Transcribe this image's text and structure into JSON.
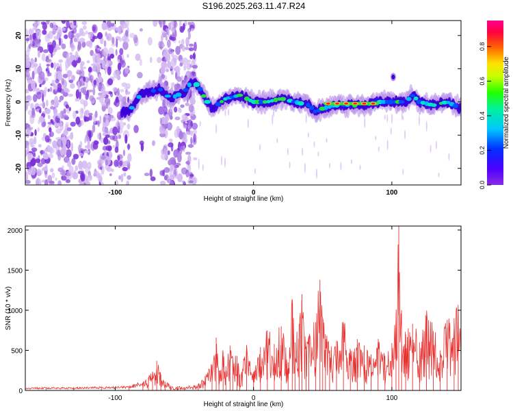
{
  "title": "S196.2025.263.11.47.R24",
  "colors": {
    "snr_line": "#e8312f",
    "wave_core": "#3a00d8",
    "wave_halo": "#b68ce8",
    "noise_light": "#d3b8f2",
    "noise_mid": "#a87ae0",
    "noise_dark": "#7a2fd8"
  },
  "chart_data": [
    {
      "id": "spectrogram",
      "type": "heatmap",
      "xlabel": "Height of straight line (km)",
      "ylabel": "Frequency (Hz)",
      "xlim": [
        -165,
        150
      ],
      "ylim": [
        -25,
        24.5
      ],
      "xticks": [
        -100,
        0,
        100
      ],
      "xtick_labels": [
        "-100",
        "0",
        "100"
      ],
      "yticks": [
        -20,
        -10,
        0,
        10,
        20
      ],
      "ytick_labels": [
        "-20",
        "-10",
        "0",
        "10",
        "20"
      ],
      "colorbar": {
        "label": "Normalized spectral amplitude",
        "range": [
          0,
          0.95
        ],
        "ticks": [
          0,
          0.2,
          0.4,
          0.6,
          0.8
        ],
        "tick_labels": [
          "0.0",
          "0.2",
          "0.4",
          "0.6",
          "0.8"
        ],
        "colormap": "rainbow (violet → blue → cyan → green → yellow → orange → red → magenta)"
      },
      "ridge": {
        "x": [
          -90,
          -82,
          -75,
          -68,
          -60,
          -50,
          -45,
          -40,
          -35,
          -30,
          -20,
          -10,
          0,
          10,
          20,
          30,
          40,
          45,
          50,
          60,
          70,
          80,
          90,
          100,
          110,
          115,
          120,
          130,
          140,
          150
        ],
        "y": [
          -3,
          2,
          3,
          4,
          1,
          3,
          6,
          5,
          1,
          -2,
          1,
          2,
          0,
          0,
          1,
          0,
          -1,
          -3,
          -2,
          -1,
          -1,
          -1,
          0,
          0,
          0,
          2,
          0,
          -1,
          0,
          -2
        ],
        "peak": {
          "x_range": [
            52,
            90
          ],
          "frequency": -0.5,
          "amplitude": 0.9
        }
      }
    },
    {
      "id": "snr",
      "type": "line",
      "xlabel": "Height of straight line (km)",
      "ylabel": "SNR (10 * v/v)",
      "xlim": [
        -165,
        150
      ],
      "ylim": [
        0,
        2050
      ],
      "xticks": [
        -100,
        0,
        100
      ],
      "xtick_labels": [
        "-100",
        "0",
        "100"
      ],
      "yticks": [
        0,
        500,
        1000,
        1500,
        2000
      ],
      "ytick_labels": [
        "0",
        "500",
        "1000",
        "1500",
        "2000"
      ],
      "series": [
        {
          "x": [
            -165,
            -150,
            -130,
            -110,
            -90,
            -80,
            -76,
            -73,
            -70,
            -67,
            -64,
            -60,
            -55,
            -50,
            -40,
            -35,
            -30,
            -27,
            -25,
            -22,
            -20,
            -17,
            -15,
            -12,
            -10,
            -5,
            0,
            5,
            10,
            15,
            20,
            25,
            28,
            30,
            33,
            35,
            38,
            40,
            45,
            48,
            50,
            52,
            55,
            60,
            65,
            70,
            75,
            80,
            85,
            90,
            95,
            100,
            103,
            105,
            107,
            110,
            115,
            120,
            125,
            130,
            135,
            140,
            145,
            148,
            150
          ],
          "values": [
            25,
            30,
            28,
            35,
            40,
            90,
            160,
            230,
            370,
            200,
            110,
            60,
            50,
            40,
            80,
            180,
            320,
            660,
            250,
            480,
            300,
            560,
            380,
            430,
            200,
            520,
            230,
            540,
            750,
            580,
            800,
            350,
            1090,
            600,
            830,
            1200,
            500,
            680,
            850,
            1380,
            900,
            700,
            500,
            620,
            850,
            500,
            640,
            560,
            450,
            600,
            430,
            590,
            880,
            2070,
            1000,
            700,
            830,
            600,
            920,
            740,
            500,
            880,
            900,
            1000,
            560
          ]
        }
      ]
    }
  ]
}
